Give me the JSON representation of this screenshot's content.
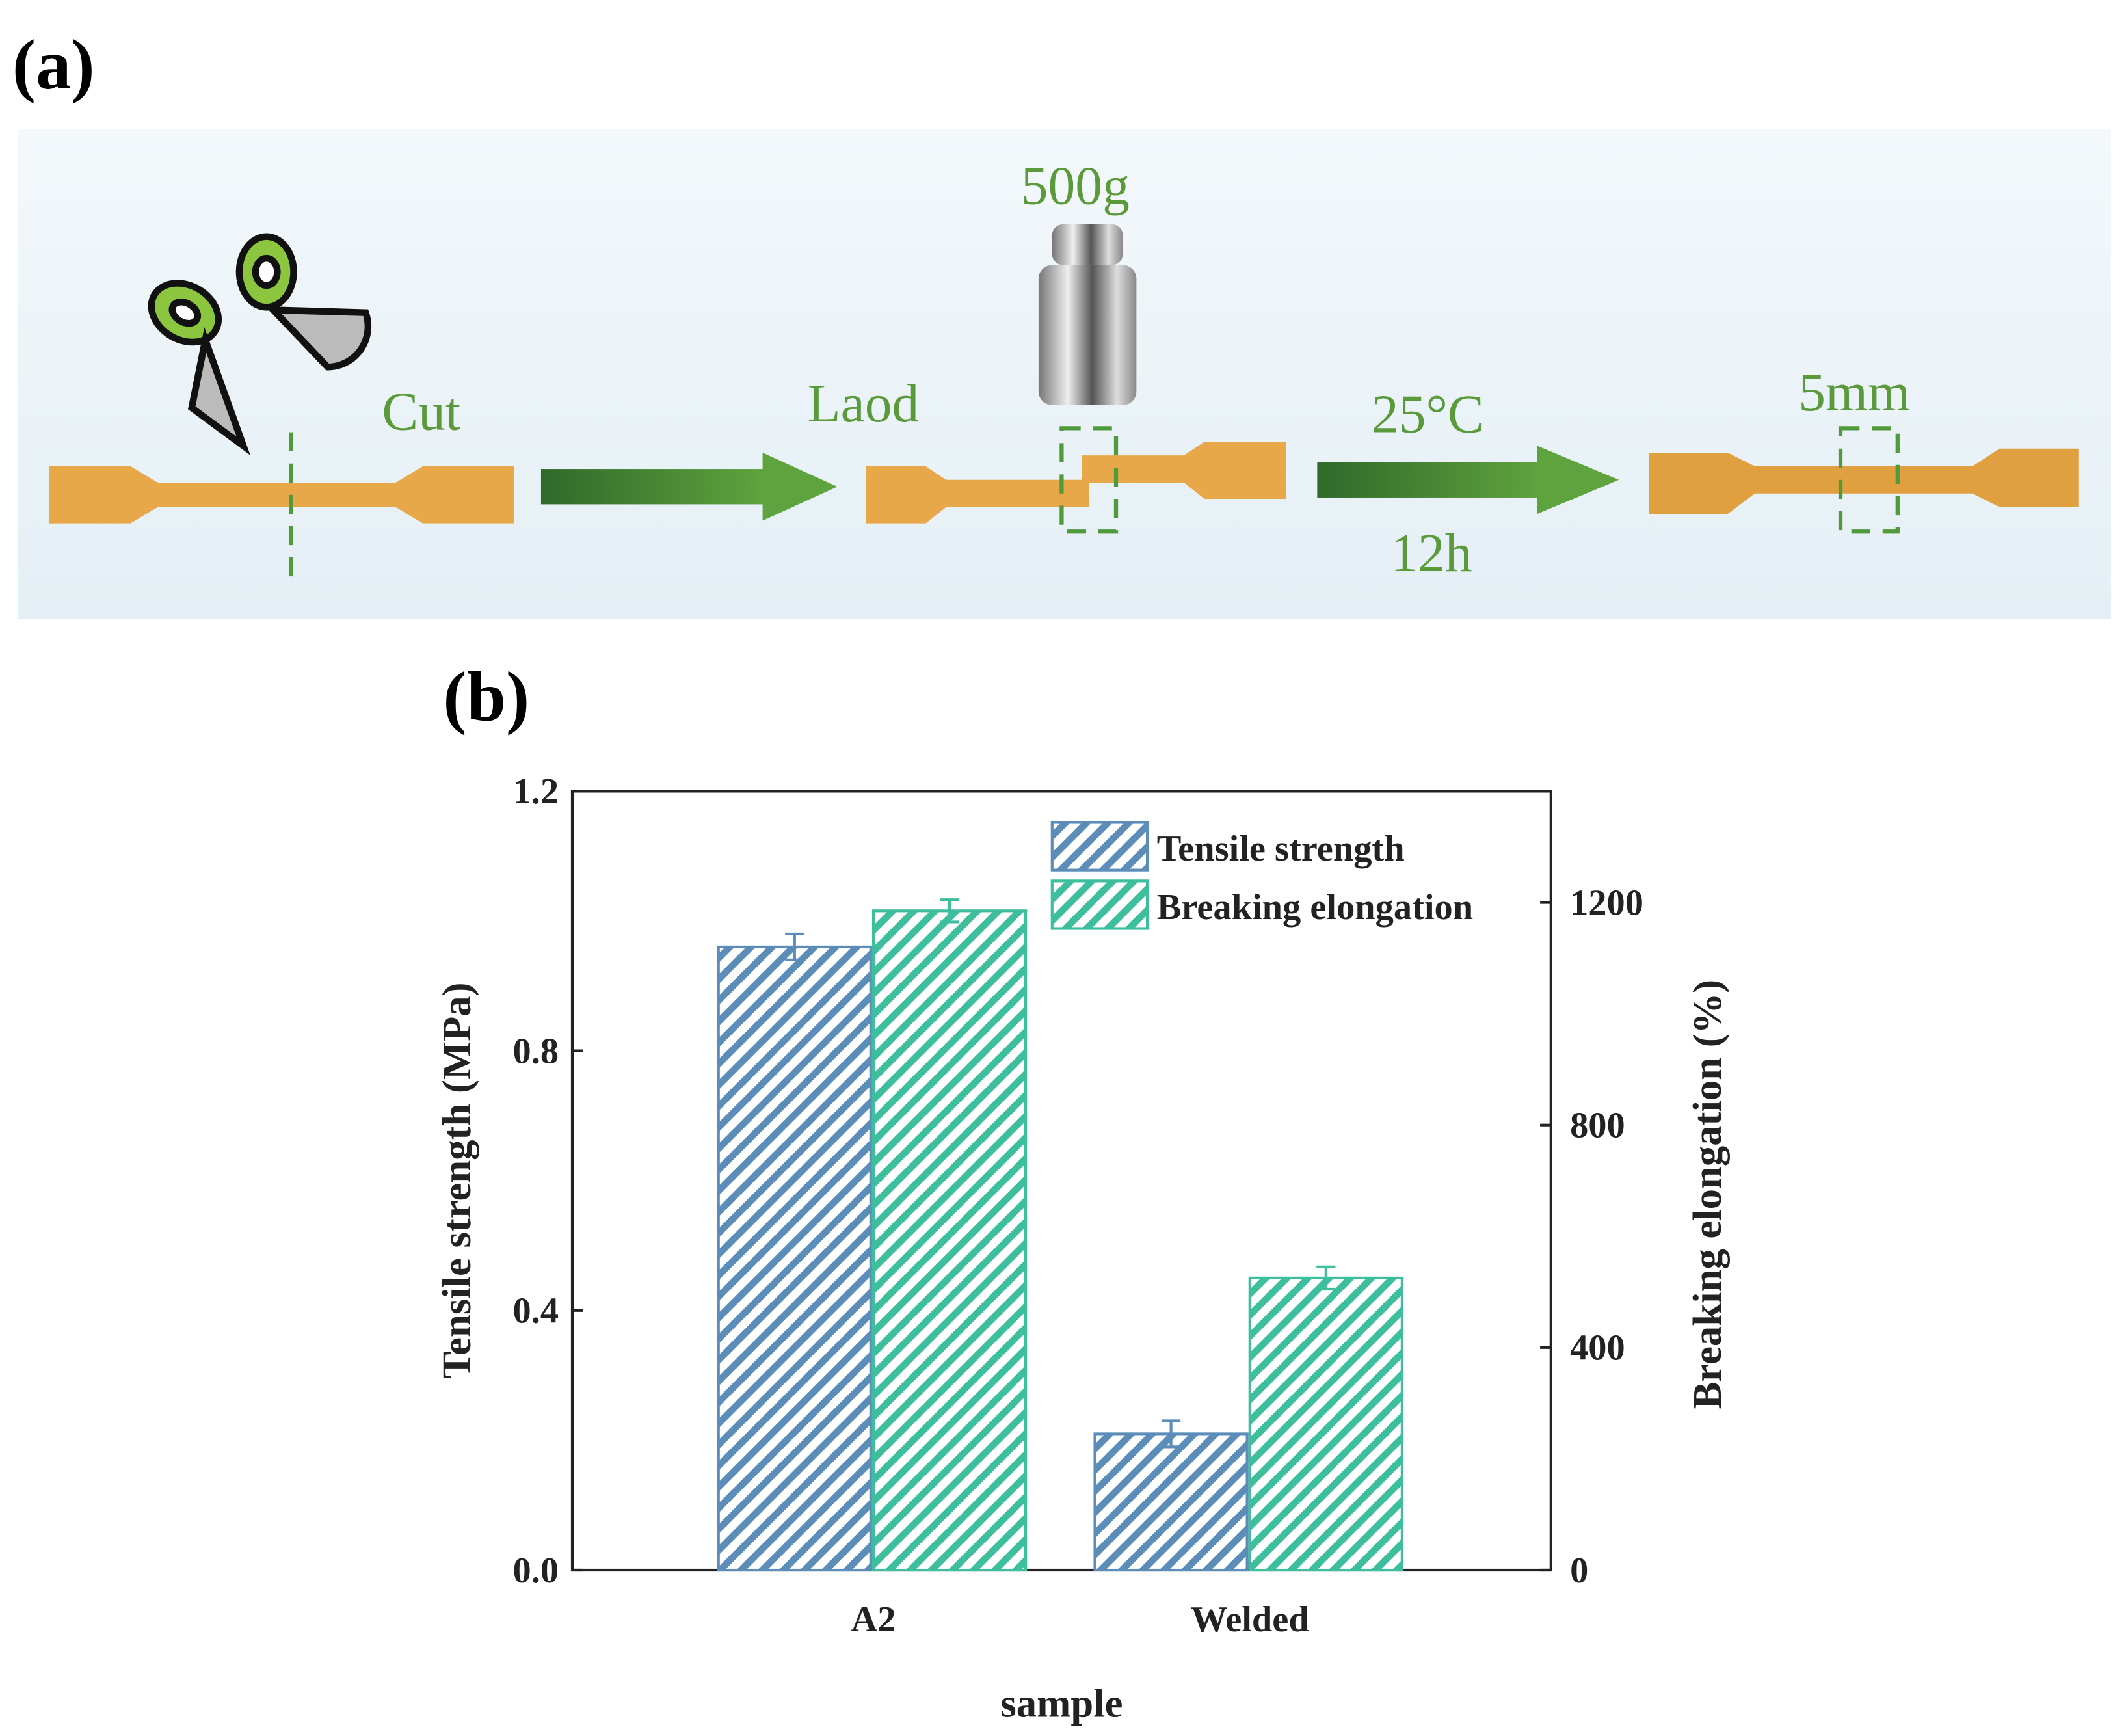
{
  "panel_a": {
    "label": "(a)",
    "cut": "Cut",
    "load": "Laod",
    "weight": "500g",
    "temperature": "25°C",
    "time": "12h",
    "overlap": "5mm"
  },
  "chart_data": {
    "type": "bar",
    "panel_label": "(b)",
    "categories": [
      "A2",
      "Welded"
    ],
    "series": [
      {
        "name": "Tensile strength",
        "color": "#5b8db8",
        "values": [
          0.96,
          0.21
        ],
        "errors": [
          0.02,
          0.02
        ]
      },
      {
        "name": "Breaking elongation",
        "color": "#3dbf9d",
        "axis": "y2",
        "values": [
          1185,
          525
        ],
        "errors": [
          20,
          20
        ]
      }
    ],
    "x_label": "sample",
    "y_label": "Tensile strength (MPa)",
    "y2_label": "Breaking elongation (%)",
    "ylim": [
      0,
      1.2
    ],
    "yticks": [
      {
        "value": 0,
        "label": "0.0"
      },
      0.4,
      0.8,
      1.2
    ],
    "y2lim": [
      0,
      1400
    ],
    "y2ticks": [
      0,
      400,
      800,
      1200
    ],
    "legend": "upper right",
    "hatch": true
  }
}
